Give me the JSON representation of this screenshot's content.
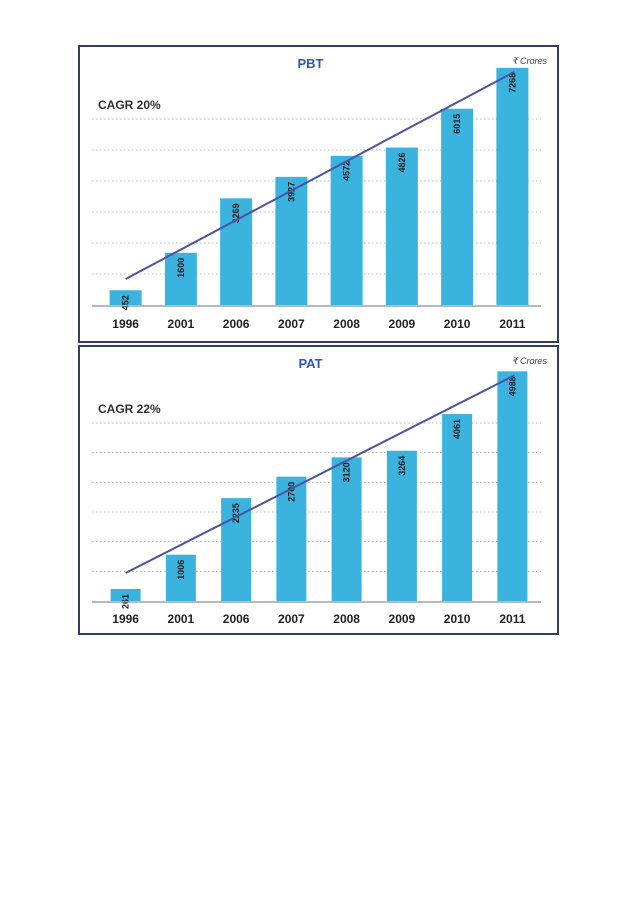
{
  "chart_data": [
    {
      "type": "bar",
      "title": "PBT",
      "unit_label": "₹ Crores",
      "annotation": "CAGR 20%",
      "categories": [
        "1996",
        "2001",
        "2006",
        "2007",
        "2008",
        "2009",
        "2010",
        "2011"
      ],
      "values": [
        452,
        1600,
        3269,
        3927,
        4572,
        4826,
        6015,
        7268
      ],
      "trend_line": true,
      "grid": true,
      "ylim": [
        0,
        7600
      ],
      "bar_color": "#3bb3df",
      "trend_color": "#4a55a2"
    },
    {
      "type": "bar",
      "title": "PAT",
      "unit_label": "₹ Crores",
      "annotation": "CAGR 22%",
      "categories": [
        "1996",
        "2001",
        "2006",
        "2007",
        "2008",
        "2009",
        "2010",
        "2011"
      ],
      "values": [
        261,
        1006,
        2235,
        2700,
        3120,
        3264,
        4061,
        4988
      ],
      "trend_line": true,
      "grid": true,
      "ylim": [
        0,
        5300
      ],
      "bar_color": "#3bb3df",
      "trend_color": "#4a55a2"
    }
  ]
}
